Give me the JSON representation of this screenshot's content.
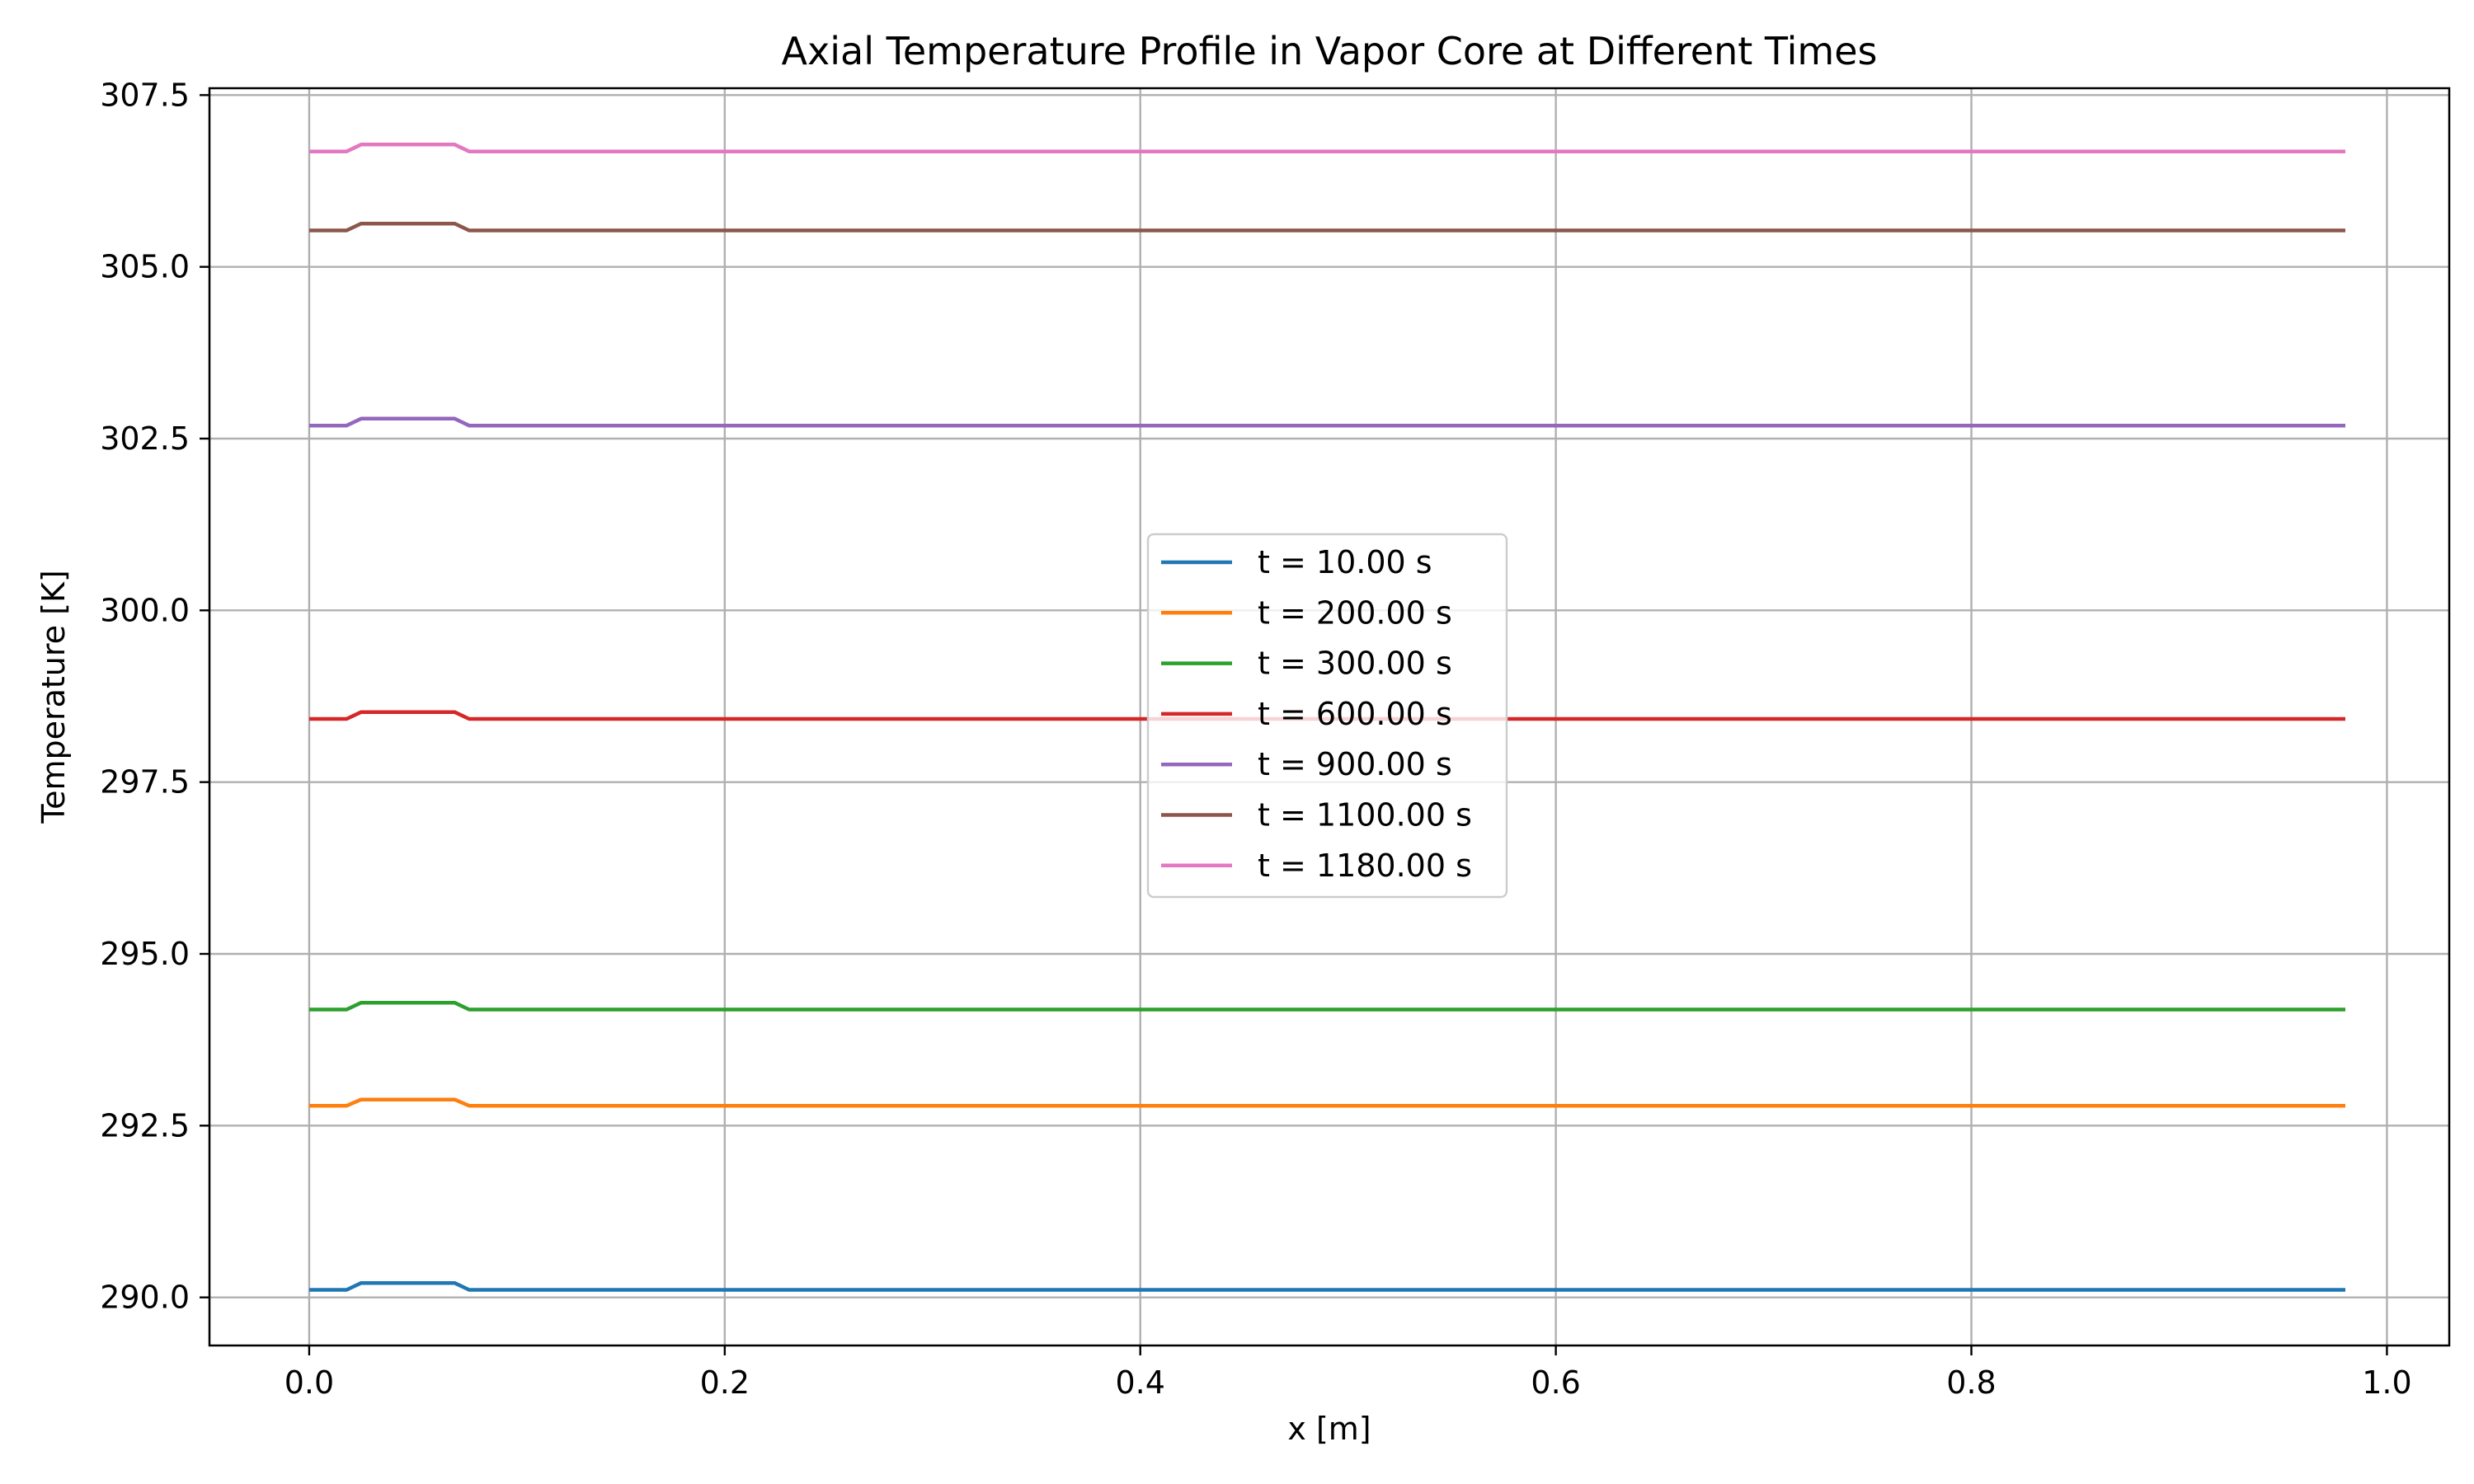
{
  "chart_data": {
    "type": "line",
    "title": "Axial Temperature Profile in Vapor Core at Different Times",
    "xlabel": "x [m]",
    "ylabel": "Temperature [K]",
    "xlim": [
      -0.048,
      1.03
    ],
    "ylim": [
      289.3,
      307.6
    ],
    "xticks": [
      0.0,
      0.2,
      0.4,
      0.6,
      0.8,
      1.0
    ],
    "xtick_labels": [
      "0.0",
      "0.2",
      "0.4",
      "0.6",
      "0.8",
      "1.0"
    ],
    "yticks": [
      290.0,
      292.5,
      295.0,
      297.5,
      300.0,
      302.5,
      305.0,
      307.5
    ],
    "ytick_labels": [
      "290.0",
      "292.5",
      "295.0",
      "297.5",
      "300.0",
      "302.5",
      "305.0",
      "307.5"
    ],
    "grid": true,
    "legend_position": "center",
    "x": [
      0.0,
      0.018,
      0.025,
      0.07,
      0.077,
      0.98
    ],
    "series": [
      {
        "name": "t = 10.00 s",
        "color": "#1f77b4",
        "values": [
          290.11,
          290.11,
          290.21,
          290.21,
          290.11,
          290.11
        ]
      },
      {
        "name": "t = 200.00 s",
        "color": "#ff7f0e",
        "values": [
          292.79,
          292.79,
          292.88,
          292.88,
          292.79,
          292.79
        ]
      },
      {
        "name": "t = 300.00 s",
        "color": "#2ca02c",
        "values": [
          294.19,
          294.19,
          294.29,
          294.29,
          294.19,
          294.19
        ]
      },
      {
        "name": "t = 600.00 s",
        "color": "#d62728",
        "values": [
          298.42,
          298.42,
          298.52,
          298.52,
          298.42,
          298.42
        ]
      },
      {
        "name": "t = 900.00 s",
        "color": "#9467bd",
        "values": [
          302.69,
          302.69,
          302.79,
          302.79,
          302.69,
          302.69
        ]
      },
      {
        "name": "t = 1100.00 s",
        "color": "#8c564b",
        "values": [
          305.53,
          305.53,
          305.63,
          305.63,
          305.53,
          305.53
        ]
      },
      {
        "name": "t = 1180.00 s",
        "color": "#e377c2",
        "values": [
          306.68,
          306.68,
          306.78,
          306.78,
          306.68,
          306.68
        ]
      }
    ]
  }
}
